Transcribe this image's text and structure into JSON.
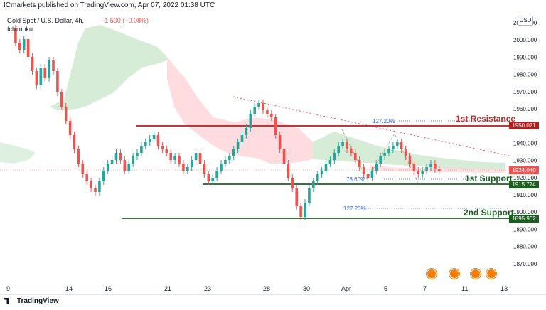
{
  "header": {
    "publisher": "ICmarkets published on TradingView.com, Apr 07, 2022 01:38 UTC",
    "symbol": "Gold Spot / U.S. Dollar, 4h,",
    "change": "−1.500 (−0.08%)",
    "indicator": "Ichimoku"
  },
  "currency_button": "USD",
  "price_axis": [
    "2010.000",
    "2000.000",
    "1990.000",
    "1980.000",
    "1970.000",
    "1960.000",
    "1950.000",
    "1940.000",
    "1930.000",
    "1920.000",
    "1910.000",
    "1900.000",
    "1890.000",
    "1880.000",
    "1870.000"
  ],
  "date_axis": [
    "9",
    "14",
    "16",
    "21",
    "23",
    "28",
    "30",
    "Apr",
    "5",
    "7",
    "11",
    "13"
  ],
  "levels": {
    "resistance": {
      "label": "1st Resistance",
      "price": "1950.021",
      "fib": "127.20%"
    },
    "support1": {
      "label": "1st Support",
      "price": "1915.774",
      "fib": "78.60%"
    },
    "support2": {
      "label": "2nd Support",
      "price": "1895.902",
      "fib": "127.20%"
    },
    "current": {
      "price": "1924.040"
    }
  },
  "colors": {
    "up": "#26a69a",
    "down": "#ef5350",
    "resistance": "#b71c1c",
    "support": "#1b5e20",
    "cloud_green": "#c8e6c9",
    "cloud_red": "#ffcdd2",
    "fib": "#2962ff"
  },
  "event_icons": [
    "flag-icon",
    "flag-icon",
    "flag-icon",
    "flag-icon"
  ],
  "footer": {
    "brand": "TradingView"
  }
}
